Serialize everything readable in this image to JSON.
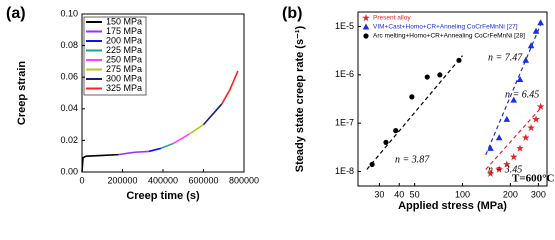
{
  "chart_data": [
    {
      "type": "line",
      "panel_label": "(a)",
      "x_label": "Creep time (s)",
      "y_label": "Creep strain",
      "xlim": [
        0,
        800000
      ],
      "xticks": [
        0,
        200000,
        400000,
        600000,
        800000
      ],
      "ylim": [
        0,
        0.1
      ],
      "yticks": [
        {
          "value": 0,
          "label": "0.00"
        },
        {
          "value": 0.02,
          "label": "0.02"
        },
        {
          "value": 0.04,
          "label": "0.04"
        },
        {
          "value": 0.06,
          "label": "0.06"
        },
        {
          "value": 0.08,
          "label": "0.08"
        },
        {
          "value": 0.1,
          "label": "0.10"
        }
      ],
      "series": [
        {
          "name": "150 MPa",
          "color": "#000000",
          "x": [
            0,
            5000,
            20000,
            100000,
            180000
          ],
          "values": [
            0,
            0.009,
            0.01,
            0.0105,
            0.011
          ]
        },
        {
          "name": "175 MPa",
          "color": "#9b30ff",
          "x": [
            180000,
            260000,
            330000
          ],
          "values": [
            0.011,
            0.0125,
            0.013
          ]
        },
        {
          "name": "200 MPa",
          "color": "#1010ff",
          "x": [
            330000,
            390000
          ],
          "values": [
            0.013,
            0.015
          ]
        },
        {
          "name": "225 MPa",
          "color": "#2a9d8f",
          "x": [
            390000,
            450000
          ],
          "values": [
            0.015,
            0.018
          ]
        },
        {
          "name": "250 MPa",
          "color": "#ff40ff",
          "x": [
            450000,
            530000
          ],
          "values": [
            0.018,
            0.024
          ]
        },
        {
          "name": "275 MPa",
          "color": "#b5c91a",
          "x": [
            530000,
            600000
          ],
          "values": [
            0.024,
            0.03
          ]
        },
        {
          "name": "300 MPa",
          "color": "#1a1a80",
          "x": [
            600000,
            690000
          ],
          "values": [
            0.03,
            0.043
          ]
        },
        {
          "name": "325 MPa",
          "color": "#ff2020",
          "x": [
            690000,
            730000,
            770000
          ],
          "values": [
            0.043,
            0.052,
            0.064
          ]
        }
      ]
    },
    {
      "type": "scatter",
      "panel_label": "(b)",
      "x_label": "Applied stress (MPa)",
      "y_label": "Steady state creep rate (s⁻¹)",
      "xlog": true,
      "ylog": true,
      "xlim": [
        22,
        340
      ],
      "xticks": [
        30,
        40,
        50,
        100,
        200,
        300
      ],
      "ylim": [
        5e-09,
        2e-05
      ],
      "yticks": [
        {
          "value": 1e-08,
          "label": "1E-8"
        },
        {
          "value": 1e-07,
          "label": "1E-7"
        },
        {
          "value": 1e-06,
          "label": "1E-6"
        },
        {
          "value": 1e-05,
          "label": "1E-5"
        }
      ],
      "series": [
        {
          "name": "Present alloy",
          "color": "#e8242a",
          "marker": "star",
          "x": [
            150,
            170,
            190,
            210,
            230,
            250,
            270,
            290,
            310
          ],
          "values": [
            9e-09,
            1.1e-08,
            1.4e-08,
            2e-08,
            3e-08,
            5e-08,
            8e-08,
            1.2e-07,
            2.2e-07
          ]
        },
        {
          "name": "VIM+Cast+Homo+CR+Anneling CoCrFeMnNi [27]",
          "color": "#1c2fe0",
          "marker": "triangle",
          "x": [
            150,
            170,
            190,
            210,
            230,
            250,
            270,
            290,
            310
          ],
          "values": [
            3e-08,
            5e-08,
            1.2e-07,
            3e-07,
            8e-07,
            2e-06,
            4e-06,
            8e-06,
            1.2e-05
          ]
        },
        {
          "name": "Arc melting+Homo+CR+Annealing CoCrFeMnNi [28]",
          "color": "#000000",
          "marker": "circle",
          "x": [
            27,
            33,
            38,
            48,
            60,
            72,
            95
          ],
          "values": [
            1.4e-08,
            4e-08,
            7e-08,
            3.5e-07,
            9e-07,
            1e-06,
            2e-06
          ]
        }
      ],
      "fit_lines": [
        {
          "color": "#000000",
          "x": [
            25,
            100
          ],
          "values": [
            1.1e-08,
            2.5e-06
          ]
        },
        {
          "color": "#1c2fe0",
          "x": [
            140,
            320
          ],
          "values": [
            2.2e-08,
            1.4e-05
          ]
        },
        {
          "color": "#e8242a",
          "x": [
            140,
            320
          ],
          "values": [
            1.1e-08,
            2.3e-07
          ]
        }
      ],
      "annotations": [
        "n = 3.87",
        "n = 7.47",
        "n = 6.45",
        "n = 3.45",
        "T=600°C"
      ]
    }
  ]
}
